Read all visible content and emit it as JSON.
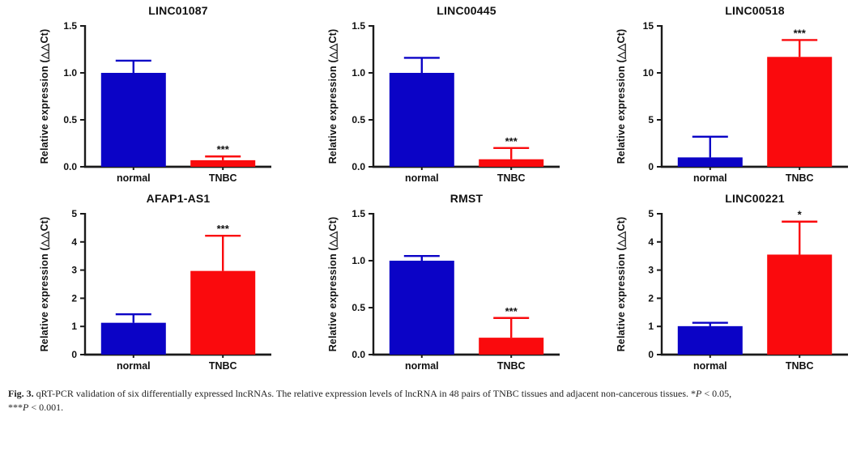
{
  "figure": {
    "colors": {
      "normal_bar": "#0b03c6",
      "tnbc_bar": "#fa0a0d",
      "axis": "#1a1a1a"
    },
    "caption": {
      "label": "Fig. 3.",
      "body": " qRT-PCR validation of six differentially expressed lncRNAs. The relative expression levels of lncRNA in 48 pairs of TNBC tissues and adjacent non-cancerous tissues. ",
      "sig1_stars": "*",
      "sig1_p": "P",
      "sig1_rest": " < 0.05,",
      "sig2_stars": "***",
      "sig2_p": "P",
      "sig2_rest": " < 0.001."
    }
  },
  "chart_data": [
    {
      "type": "bar",
      "title": "LINC01087",
      "xlabel": "",
      "ylabel": "Relative expression (△△Ct)",
      "categories": [
        "normal",
        "TNBC"
      ],
      "values": [
        1.0,
        0.07
      ],
      "errors_up": [
        0.13,
        0.04
      ],
      "significance": [
        "",
        "***"
      ],
      "ylim": [
        0,
        1.5
      ],
      "yticks": [
        0,
        0.5,
        1.0,
        1.5
      ],
      "ytick_labels": [
        "0.0",
        "0.5",
        "1.0",
        "1.5"
      ],
      "bar_colors": [
        "#0b03c6",
        "#fa0a0d"
      ],
      "grid": false,
      "legend": "none"
    },
    {
      "type": "bar",
      "title": "LINC00445",
      "xlabel": "",
      "ylabel": "Relative expression (△△Ct)",
      "categories": [
        "normal",
        "TNBC"
      ],
      "values": [
        1.0,
        0.08
      ],
      "errors_up": [
        0.16,
        0.12
      ],
      "significance": [
        "",
        "***"
      ],
      "ylim": [
        0,
        1.5
      ],
      "yticks": [
        0,
        0.5,
        1.0,
        1.5
      ],
      "ytick_labels": [
        "0.0",
        "0.5",
        "1.0",
        "1.5"
      ],
      "bar_colors": [
        "#0b03c6",
        "#fa0a0d"
      ],
      "grid": false,
      "legend": "none"
    },
    {
      "type": "bar",
      "title": "LINC00518",
      "xlabel": "",
      "ylabel": "Relative expression (△△Ct)",
      "categories": [
        "normal",
        "TNBC"
      ],
      "values": [
        1.0,
        11.7
      ],
      "errors_up": [
        2.2,
        1.8
      ],
      "significance": [
        "",
        "***"
      ],
      "ylim": [
        0,
        15
      ],
      "yticks": [
        0,
        5,
        10,
        15
      ],
      "ytick_labels": [
        "0",
        "5",
        "10",
        "15"
      ],
      "bar_colors": [
        "#0b03c6",
        "#fa0a0d"
      ],
      "grid": false,
      "legend": "none"
    },
    {
      "type": "bar",
      "title": "AFAP1-AS1",
      "xlabel": "",
      "ylabel": "Relative expression (△△Ct)",
      "categories": [
        "normal",
        "TNBC"
      ],
      "values": [
        1.13,
        2.97
      ],
      "errors_up": [
        0.3,
        1.25
      ],
      "significance": [
        "",
        "***"
      ],
      "ylim": [
        0,
        5
      ],
      "yticks": [
        0,
        1,
        2,
        3,
        4,
        5
      ],
      "ytick_labels": [
        "0",
        "1",
        "2",
        "3",
        "4",
        "5"
      ],
      "bar_colors": [
        "#0b03c6",
        "#fa0a0d"
      ],
      "grid": false,
      "legend": "none"
    },
    {
      "type": "bar",
      "title": "RMST",
      "xlabel": "",
      "ylabel": "Relative expression (△△Ct)",
      "categories": [
        "normal",
        "TNBC"
      ],
      "values": [
        1.0,
        0.18
      ],
      "errors_up": [
        0.05,
        0.21
      ],
      "significance": [
        "",
        "***"
      ],
      "ylim": [
        0,
        1.5
      ],
      "yticks": [
        0,
        0.5,
        1.0,
        1.5
      ],
      "ytick_labels": [
        "0.0",
        "0.5",
        "1.0",
        "1.5"
      ],
      "bar_colors": [
        "#0b03c6",
        "#fa0a0d"
      ],
      "grid": false,
      "legend": "none"
    },
    {
      "type": "bar",
      "title": "LINC00221",
      "xlabel": "",
      "ylabel": "Relative expression (△△Ct)",
      "categories": [
        "normal",
        "TNBC"
      ],
      "values": [
        1.01,
        3.55
      ],
      "errors_up": [
        0.12,
        1.17
      ],
      "significance": [
        "",
        "*"
      ],
      "ylim": [
        0,
        5
      ],
      "yticks": [
        0,
        1,
        2,
        3,
        4,
        5
      ],
      "ytick_labels": [
        "0",
        "1",
        "2",
        "3",
        "4",
        "5"
      ],
      "bar_colors": [
        "#0b03c6",
        "#fa0a0d"
      ],
      "grid": false,
      "legend": "none"
    }
  ]
}
